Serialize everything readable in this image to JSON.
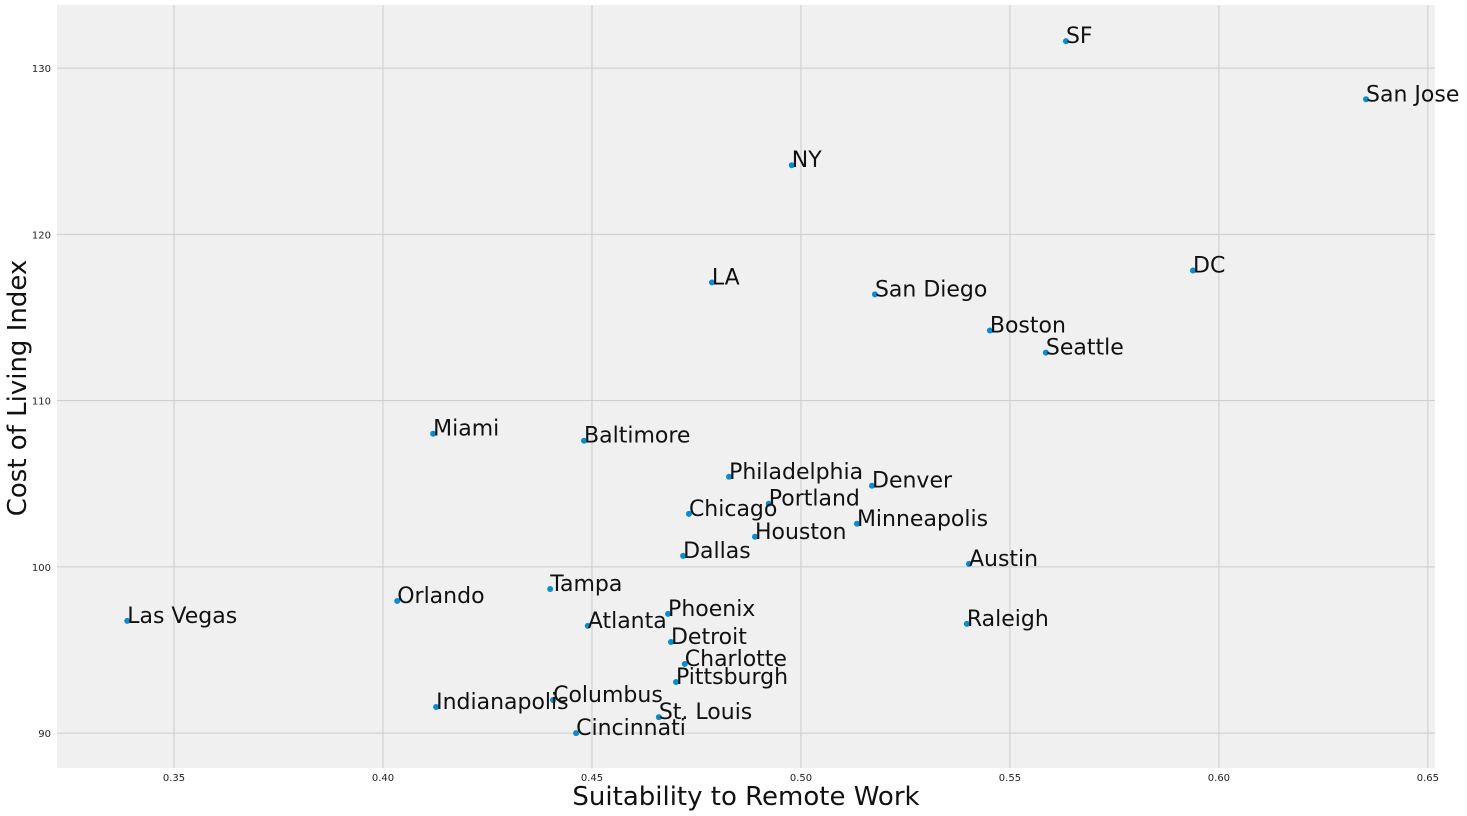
{
  "chart_data": {
    "type": "scatter",
    "xlabel": "Suitability to Remote Work",
    "ylabel": "Cost of Living Index",
    "labels": [
      "SF",
      "San Jose",
      "NY",
      "DC",
      "LA",
      "San Diego",
      "Boston",
      "Seattle",
      "Miami",
      "Baltimore",
      "Philadelphia",
      "Denver",
      "Portland",
      "Chicago",
      "Minneapolis",
      "Houston",
      "Dallas",
      "Austin",
      "Tampa",
      "Orlando",
      "Las Vegas",
      "Phoenix",
      "Atlanta",
      "Raleigh",
      "Detroit",
      "Charlotte",
      "Pittsburgh",
      "Columbus",
      "Indianapolis",
      "St. Louis",
      "Cincinnati"
    ],
    "x": [
      0.5634,
      0.6352,
      0.4978,
      0.5938,
      0.4787,
      0.5177,
      0.5452,
      0.5586,
      0.412,
      0.4481,
      0.4828,
      0.517,
      0.4923,
      0.4732,
      0.5134,
      0.489,
      0.4718,
      0.5402,
      0.44,
      0.4034,
      0.3388,
      0.4682,
      0.449,
      0.5397,
      0.4689,
      0.4722,
      0.4701,
      0.4407,
      0.4127,
      0.466,
      0.4462
    ],
    "values": [
      131.63,
      128.13,
      124.16,
      117.83,
      117.11,
      116.39,
      114.22,
      112.89,
      108.01,
      107.59,
      105.42,
      104.88,
      103.8,
      103.19,
      102.59,
      101.81,
      100.66,
      100.18,
      98.67,
      97.95,
      96.75,
      97.17,
      96.45,
      96.57,
      95.48,
      94.16,
      93.07,
      91.99,
      91.57,
      90.96,
      90.0
    ],
    "color": "#008fd5",
    "xlim": [
      0.322,
      0.6517
    ],
    "ylim": [
      87.9,
      133.8
    ],
    "xticks": [
      0.35,
      {
        "value": 0.4,
        "label": "0.40"
      },
      0.45,
      {
        "value": 0.5,
        "label": "0.50"
      },
      0.55,
      {
        "value": 0.6,
        "label": "0.60"
      },
      0.65
    ],
    "yticks": [
      90,
      100,
      110,
      120,
      130
    ],
    "grid": true
  }
}
